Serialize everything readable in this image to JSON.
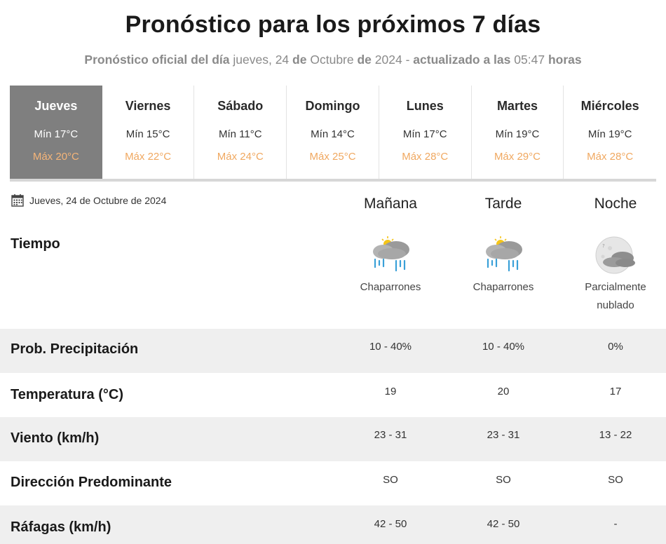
{
  "header": {
    "title": "Pronóstico para los próximos 7 días",
    "subtitle_pre": "Pronóstico oficial del día",
    "subtitle_date_weekday": "jueves, 24",
    "subtitle_de1": "de",
    "subtitle_month": "Octubre",
    "subtitle_de2": "de",
    "subtitle_year": "2024 -",
    "subtitle_updated": "actualizado a las",
    "subtitle_time": "05:47",
    "subtitle_hours": "horas"
  },
  "days": [
    {
      "name": "Jueves",
      "min": "Mín 17°C",
      "max": "Máx 20°C",
      "active": true
    },
    {
      "name": "Viernes",
      "min": "Mín 15°C",
      "max": "Máx 22°C"
    },
    {
      "name": "Sábado",
      "min": "Mín 11°C",
      "max": "Máx 24°C"
    },
    {
      "name": "Domingo",
      "min": "Mín 14°C",
      "max": "Máx 25°C"
    },
    {
      "name": "Lunes",
      "min": "Mín 17°C",
      "max": "Máx 28°C"
    },
    {
      "name": "Martes",
      "min": "Mín 19°C",
      "max": "Máx 29°C"
    },
    {
      "name": "Miércoles",
      "min": "Mín 19°C",
      "max": "Máx 28°C"
    }
  ],
  "detail": {
    "date": "Jueves, 24 de Octubre de 2024",
    "date_icon": "calendar-icon",
    "columns": [
      "Mañana",
      "Tarde",
      "Noche"
    ],
    "weather_label": "Tiempo",
    "weather": [
      {
        "icon": "rain-showers-icon",
        "desc_line1": "Chaparrones",
        "desc_line2": ""
      },
      {
        "icon": "rain-showers-icon",
        "desc_line1": "Chaparrones",
        "desc_line2": ""
      },
      {
        "icon": "partly-cloudy-night-icon",
        "desc_line1": "Parcialmente",
        "desc_line2": "nublado"
      }
    ],
    "rows": [
      {
        "label": "Prob. Precipitación",
        "values": [
          "10 - 40%",
          "10 - 40%",
          "0%"
        ]
      },
      {
        "label": "Temperatura (°C)",
        "values": [
          "19",
          "20",
          "17"
        ]
      },
      {
        "label": "Viento (km/h)",
        "values": [
          "23 - 31",
          "23 - 31",
          "13 - 22"
        ]
      },
      {
        "label": "Dirección Predominante",
        "values": [
          "SO",
          "SO",
          "SO"
        ]
      },
      {
        "label": "Ráfagas (km/h)",
        "values": [
          "42 - 50",
          "42 - 50",
          "-"
        ]
      }
    ]
  },
  "colors": {
    "active_day_bg": "#7f7f7f",
    "max_temp": "#f0a860",
    "row_band": "#efefef"
  }
}
